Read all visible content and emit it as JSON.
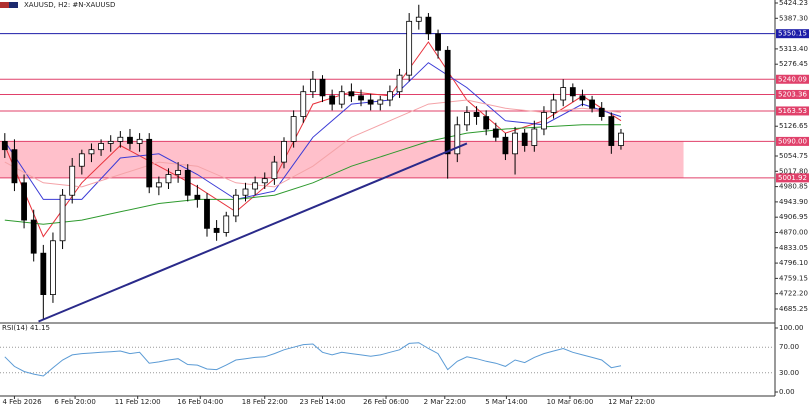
{
  "chart_data": {
    "type": "candlestick",
    "title": "XAUUSD, H2:  #N-XAUUSD",
    "xlim": [
      -0.5,
      80
    ],
    "ylim": [
      4651.4,
      5431.5
    ],
    "xticks": [
      {
        "value": 1,
        "label": "4 Feb 2026"
      },
      {
        "value": 7.3,
        "label": "6 Feb 20:00"
      },
      {
        "value": 13.8,
        "label": "11 Feb 12:00"
      },
      {
        "value": 20.3,
        "label": "16 Feb 04:00"
      },
      {
        "value": 27,
        "label": "18 Feb 22:00"
      },
      {
        "value": 33,
        "label": "23 Feb 14:00"
      },
      {
        "value": 39.6,
        "label": "26 Feb 06:00"
      },
      {
        "value": 45.7,
        "label": "2 Mar 22:00"
      },
      {
        "value": 52.1,
        "label": "5 Mar 14:00"
      },
      {
        "value": 58.7,
        "label": "10 Mar 06:00"
      },
      {
        "value": 65.1,
        "label": "12 Mar 22:00"
      }
    ],
    "yticks": [
      5424.23,
      {
        "value": 5387.3,
        "label": "5387.30"
      },
      {
        "value": 5313.4,
        "label": "5313.40"
      },
      5276.45,
      5126.65,
      5054.75,
      {
        "value": 5017.8,
        "label": "5017.80"
      },
      4980.85,
      {
        "value": 4943.9,
        "label": "4943.90"
      },
      4906.95,
      {
        "value": 4870,
        "label": "4870.00"
      },
      4833.05,
      {
        "value": 4796.1,
        "label": "4796.10"
      },
      4759.15,
      {
        "value": 4722.2,
        "label": "4722.20"
      },
      4685.25
    ],
    "open": [
      5090,
      5070,
      4990,
      4900,
      4820,
      4720,
      4850,
      4960,
      5030,
      5060,
      5070,
      5085,
      5090,
      5100,
      5085,
      5095,
      4980,
      4990,
      5010,
      5020,
      4960,
      4950,
      4880,
      4870,
      4910,
      4960,
      4975,
      4990,
      5000,
      5040,
      5090,
      5150,
      5210,
      5240,
      5200,
      5180,
      5210,
      5200,
      5190,
      5180,
      5190,
      5210,
      5250,
      5380,
      5390,
      5350,
      5310,
      5060,
      5130,
      5160,
      5150,
      5120,
      5100,
      5060,
      5110,
      5080,
      5120,
      5160,
      5190,
      5220,
      5200,
      5190,
      5170,
      5150,
      5080
    ],
    "high": [
      5110,
      5095,
      5010,
      4925,
      4840,
      4870,
      4975,
      5050,
      5070,
      5085,
      5095,
      5105,
      5115,
      5120,
      5110,
      5110,
      5005,
      5025,
      5040,
      5035,
      4985,
      4965,
      4900,
      4920,
      4975,
      4990,
      5005,
      5015,
      5055,
      5100,
      5165,
      5225,
      5260,
      5250,
      5215,
      5225,
      5230,
      5215,
      5205,
      5200,
      5225,
      5265,
      5400,
      5420,
      5400,
      5360,
      5320,
      5150,
      5175,
      5175,
      5165,
      5135,
      5110,
      5125,
      5120,
      5140,
      5175,
      5205,
      5240,
      5230,
      5215,
      5200,
      5185,
      5160,
      5120
    ],
    "low": [
      5050,
      4970,
      4880,
      4800,
      4660,
      4700,
      4830,
      4940,
      5010,
      5040,
      5055,
      5065,
      5075,
      5070,
      5065,
      4965,
      4960,
      4975,
      4990,
      4945,
      4930,
      4860,
      4850,
      4860,
      4895,
      4945,
      4960,
      4975,
      4985,
      5025,
      5075,
      5135,
      5195,
      5185,
      5165,
      5170,
      5185,
      5175,
      5165,
      5165,
      5175,
      5195,
      5235,
      5360,
      5335,
      5290,
      5000,
      5040,
      5115,
      5130,
      5105,
      5090,
      5045,
      5010,
      5065,
      5065,
      5105,
      5145,
      5175,
      5185,
      5175,
      5160,
      5140,
      5060,
      5070
    ],
    "close": [
      5070,
      4990,
      4900,
      4820,
      4720,
      4850,
      4960,
      5030,
      5060,
      5070,
      5085,
      5090,
      5100,
      5085,
      5095,
      4980,
      4990,
      5010,
      5020,
      4960,
      4950,
      4880,
      4870,
      4910,
      4960,
      4975,
      4990,
      5000,
      5040,
      5090,
      5150,
      5210,
      5240,
      5200,
      5180,
      5210,
      5200,
      5190,
      5180,
      5190,
      5210,
      5250,
      5380,
      5390,
      5350,
      5310,
      5060,
      5130,
      5160,
      5150,
      5120,
      5100,
      5060,
      5110,
      5080,
      5120,
      5160,
      5190,
      5220,
      5200,
      5190,
      5170,
      5150,
      5080,
      5110
    ],
    "indicator_x": [
      0,
      4,
      8,
      12,
      16,
      20,
      24,
      28,
      32,
      36,
      40,
      44,
      48,
      52,
      56,
      60,
      64
    ],
    "indicators": [
      {
        "color": "#e8323c",
        "values": [
          5080,
          4860,
          4990,
          5080,
          5030,
          4980,
          4920,
          5000,
          5180,
          5210,
          5200,
          5330,
          5190,
          5110,
          5140,
          5200,
          5140
        ]
      },
      {
        "color": "#3b3bd6",
        "values": [
          5090,
          4950,
          4950,
          5050,
          5060,
          5010,
          4950,
          4970,
          5100,
          5180,
          5190,
          5280,
          5220,
          5140,
          5130,
          5180,
          5150
        ]
      },
      {
        "color": "#f4a3a8",
        "values": [
          5040,
          4990,
          4980,
          5010,
          5040,
          5030,
          4990,
          4980,
          5030,
          5100,
          5140,
          5180,
          5190,
          5170,
          5160,
          5170,
          5160
        ]
      },
      {
        "color": "#2e9a2e",
        "values": [
          4900,
          4890,
          4900,
          4920,
          4940,
          4950,
          4950,
          4960,
          4990,
          5030,
          5060,
          5090,
          5110,
          5120,
          5125,
          5130,
          5130
        ]
      }
    ],
    "levels": [
      {
        "value": 5350.15,
        "color": "#1c1ca8"
      },
      {
        "value": 5240.09,
        "color": "#e0406a"
      },
      {
        "value": 5203.36,
        "color": "#e0406a"
      },
      {
        "value": 5163.53,
        "color": "#e0406a"
      },
      {
        "value": 5090,
        "label": "5090.00",
        "color": "#e0406a"
      },
      {
        "value": 5001.92,
        "color": "#e0406a"
      }
    ],
    "zone": {
      "x": [
        -0.5,
        70.5
      ],
      "y": [
        5001.92,
        5090
      ],
      "color": "#ffc0cb"
    },
    "trendline": {
      "x": [
        3.5,
        48
      ],
      "y": [
        4655,
        5085
      ],
      "color": "#2a2a8a"
    },
    "rsi": {
      "label": "RSI(14) 41.15",
      "color": "#5b9bd5",
      "ylim": [
        0,
        100
      ],
      "yticks": [
        {
          "value": 100,
          "label": "100.00"
        },
        {
          "value": 70,
          "label": "70.00"
        },
        {
          "value": 30,
          "label": "30.00"
        },
        {
          "value": 0,
          "label": "0.00"
        }
      ],
      "values": [
        55,
        40,
        32,
        28,
        25,
        38,
        50,
        58,
        60,
        61,
        62,
        63,
        64,
        60,
        62,
        45,
        47,
        50,
        52,
        43,
        42,
        36,
        35,
        42,
        50,
        52,
        54,
        55,
        60,
        66,
        70,
        74,
        75,
        62,
        58,
        62,
        60,
        58,
        56,
        58,
        62,
        66,
        76,
        77,
        68,
        60,
        35,
        48,
        55,
        52,
        48,
        45,
        40,
        50,
        46,
        54,
        60,
        64,
        68,
        62,
        58,
        54,
        50,
        38,
        41.15
      ]
    }
  }
}
